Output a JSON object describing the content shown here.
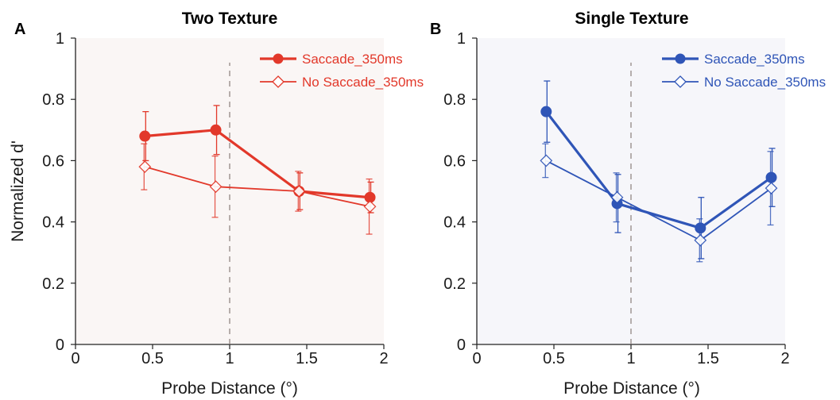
{
  "chart_data": [
    {
      "type": "line",
      "panel_label": "A",
      "title": "Two Texture",
      "xlabel": "Probe Distance (°)",
      "ylabel": "Normalized d'",
      "xlim": [
        0,
        2
      ],
      "ylim": [
        0,
        1
      ],
      "xticks": [
        "0",
        "0.5",
        "1",
        "1.5",
        "2"
      ],
      "yticks": [
        "0",
        "0.2",
        "0.4",
        "0.6",
        "0.8",
        "1"
      ],
      "reference_line_x": 1,
      "legend_position": "top-right",
      "color": "#e2382a",
      "series": [
        {
          "name": "Saccade_350ms",
          "marker": "filled-circle",
          "x": [
            0.45,
            0.91,
            1.45,
            1.91
          ],
          "y": [
            0.68,
            0.7,
            0.5,
            0.48
          ],
          "err": [
            0.08,
            0.08,
            0.06,
            0.05
          ]
        },
        {
          "name": "No Saccade_350ms",
          "marker": "open-diamond",
          "x": [
            0.45,
            0.91,
            1.45,
            1.91
          ],
          "y": [
            0.58,
            0.515,
            0.5,
            0.45
          ],
          "err": [
            0.075,
            0.1,
            0.065,
            0.09
          ]
        }
      ]
    },
    {
      "type": "line",
      "panel_label": "B",
      "title": "Single Texture",
      "xlabel": "Probe Distance (°)",
      "ylabel": "",
      "xlim": [
        0,
        2
      ],
      "ylim": [
        0,
        1
      ],
      "xticks": [
        "0",
        "0.5",
        "1",
        "1.5",
        "2"
      ],
      "yticks": [
        "0",
        "0.2",
        "0.4",
        "0.6",
        "0.8",
        "1"
      ],
      "reference_line_x": 1,
      "legend_position": "top-right",
      "color": "#2f55b7",
      "series": [
        {
          "name": "Saccade_350ms",
          "marker": "filled-circle",
          "x": [
            0.45,
            0.91,
            1.45,
            1.91
          ],
          "y": [
            0.76,
            0.46,
            0.38,
            0.545
          ],
          "err": [
            0.1,
            0.095,
            0.1,
            0.095
          ]
        },
        {
          "name": "No Saccade_350ms",
          "marker": "open-diamond",
          "x": [
            0.45,
            0.91,
            1.45,
            1.91
          ],
          "y": [
            0.6,
            0.48,
            0.34,
            0.51
          ],
          "err": [
            0.055,
            0.08,
            0.07,
            0.12
          ]
        }
      ]
    }
  ]
}
